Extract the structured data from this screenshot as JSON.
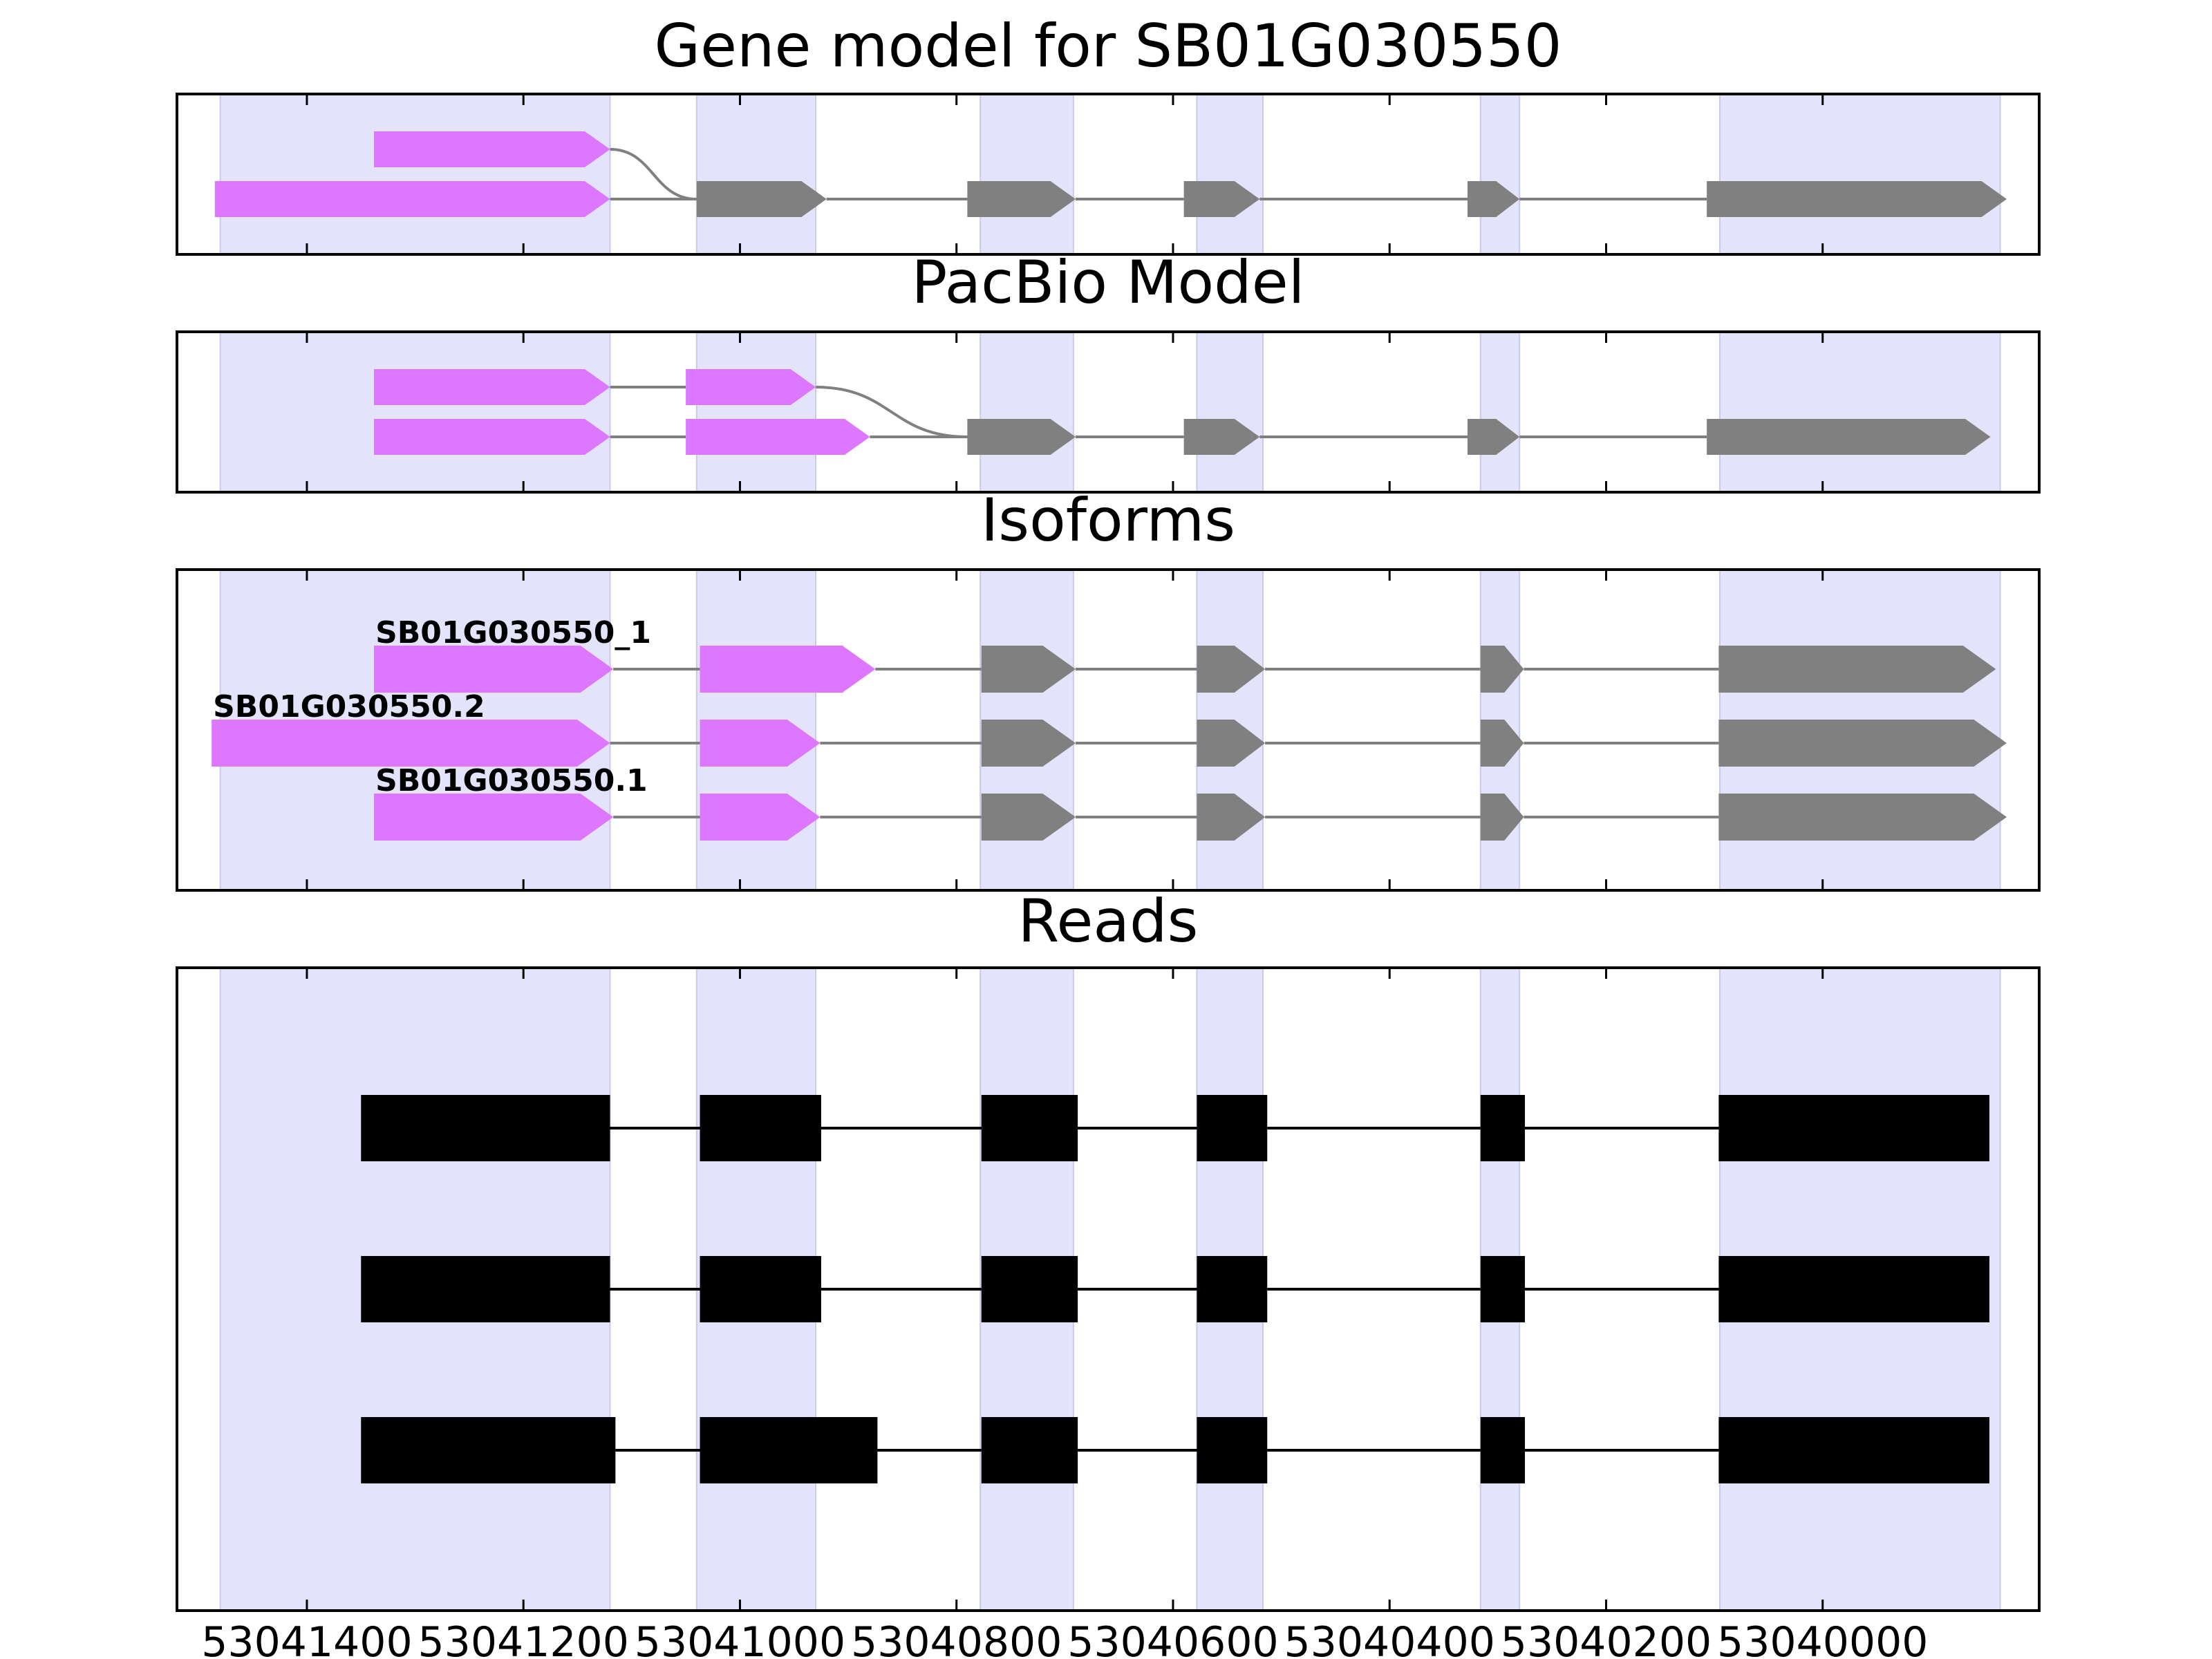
{
  "chart_data": {
    "type": "gene-structure",
    "xlim": [
      53041520,
      53039800
    ],
    "x_ticks": [
      {
        "value": 53041400,
        "label": "53041400"
      },
      {
        "value": 53041200,
        "label": "53041200"
      },
      {
        "value": 53041000,
        "label": "53041000"
      },
      {
        "value": 53040800,
        "label": "53040800"
      },
      {
        "value": 53040600,
        "label": "53040600"
      },
      {
        "value": 53040400,
        "label": "53040400"
      },
      {
        "value": 53040200,
        "label": "53040200"
      },
      {
        "value": 53040000,
        "label": "53040000"
      }
    ],
    "exon_regions": [
      [
        53041480,
        53041120
      ],
      [
        53041040,
        53040930
      ],
      [
        53040778,
        53040692
      ],
      [
        53040578,
        53040517
      ],
      [
        53040316,
        53040280
      ],
      [
        53040095,
        53039836
      ]
    ],
    "colors": {
      "utr": "#dd77ff",
      "cds": "#808080",
      "exon_shade": "#e3e3fb",
      "read": "#000000",
      "intron": "#808080"
    },
    "panels": [
      {
        "title": "Gene model for SB01G030550",
        "rows": 2,
        "transcripts": [
          {
            "exons": [
              {
                "s": 53041485,
                "e": 53041120,
                "t": "utr"
              },
              {
                "s": 53041040,
                "e": 53040920,
                "t": "cds"
              },
              {
                "s": 53040790,
                "e": 53040690,
                "t": "cds"
              },
              {
                "s": 53040590,
                "e": 53040520,
                "t": "cds"
              },
              {
                "s": 53040328,
                "e": 53040280,
                "t": "cds"
              },
              {
                "s": 53040107,
                "e": 53039830,
                "t": "cds"
              }
            ]
          },
          {
            "exons": [
              {
                "s": 53041338,
                "e": 53041120,
                "t": "utr"
              }
            ],
            "joins_row": 0
          }
        ]
      },
      {
        "title": "PacBio Model",
        "rows": 2,
        "transcripts": [
          {
            "exons": [
              {
                "s": 53041338,
                "e": 53041120,
                "t": "utr"
              },
              {
                "s": 53041050,
                "e": 53040880,
                "t": "utr"
              },
              {
                "s": 53040790,
                "e": 53040690,
                "t": "cds"
              },
              {
                "s": 53040590,
                "e": 53040520,
                "t": "cds"
              },
              {
                "s": 53040328,
                "e": 53040280,
                "t": "cds"
              },
              {
                "s": 53040107,
                "e": 53039845,
                "t": "cds"
              }
            ]
          },
          {
            "exons": [
              {
                "s": 53041338,
                "e": 53041120,
                "t": "utr"
              },
              {
                "s": 53041050,
                "e": 53040930,
                "t": "utr"
              }
            ],
            "joins_row": 0
          }
        ]
      },
      {
        "title": "Isoforms",
        "rows": 3,
        "transcripts": [
          {
            "label": "SB01G030550.1",
            "exons": [
              {
                "s": 53041338,
                "e": 53041117,
                "t": "utr"
              },
              {
                "s": 53041037,
                "e": 53040926,
                "t": "utr"
              },
              {
                "s": 53040777,
                "e": 53040690,
                "t": "cds"
              },
              {
                "s": 53040578,
                "e": 53040515,
                "t": "cds"
              },
              {
                "s": 53040316,
                "e": 53040276,
                "t": "cds"
              },
              {
                "s": 53040096,
                "e": 53039830,
                "t": "cds"
              }
            ]
          },
          {
            "label": "SB01G030550.2",
            "exons": [
              {
                "s": 53041488,
                "e": 53041120,
                "t": "utr"
              },
              {
                "s": 53041037,
                "e": 53040926,
                "t": "utr"
              },
              {
                "s": 53040777,
                "e": 53040690,
                "t": "cds"
              },
              {
                "s": 53040578,
                "e": 53040515,
                "t": "cds"
              },
              {
                "s": 53040316,
                "e": 53040276,
                "t": "cds"
              },
              {
                "s": 53040096,
                "e": 53039830,
                "t": "cds"
              }
            ]
          },
          {
            "label": "SB01G030550_1",
            "exons": [
              {
                "s": 53041338,
                "e": 53041117,
                "t": "utr"
              },
              {
                "s": 53041037,
                "e": 53040875,
                "t": "utr"
              },
              {
                "s": 53040777,
                "e": 53040690,
                "t": "cds"
              },
              {
                "s": 53040578,
                "e": 53040515,
                "t": "cds"
              },
              {
                "s": 53040316,
                "e": 53040276,
                "t": "cds"
              },
              {
                "s": 53040096,
                "e": 53039840,
                "t": "cds"
              }
            ]
          }
        ]
      },
      {
        "title": "Reads",
        "rows": 3,
        "reads": [
          {
            "exons": [
              [
                53041350,
                53041115
              ],
              [
                53041037,
                53040873
              ],
              [
                53040777,
                53040688
              ],
              [
                53040578,
                53040513
              ],
              [
                53040316,
                53040275
              ],
              [
                53040096,
                53039846
              ]
            ]
          },
          {
            "exons": [
              [
                53041350,
                53041120
              ],
              [
                53041037,
                53040925
              ],
              [
                53040777,
                53040688
              ],
              [
                53040578,
                53040513
              ],
              [
                53040316,
                53040275
              ],
              [
                53040096,
                53039846
              ]
            ]
          },
          {
            "exons": [
              [
                53041350,
                53041120
              ],
              [
                53041037,
                53040925
              ],
              [
                53040777,
                53040688
              ],
              [
                53040578,
                53040513
              ],
              [
                53040316,
                53040275
              ],
              [
                53040096,
                53039846
              ]
            ]
          }
        ]
      }
    ]
  }
}
